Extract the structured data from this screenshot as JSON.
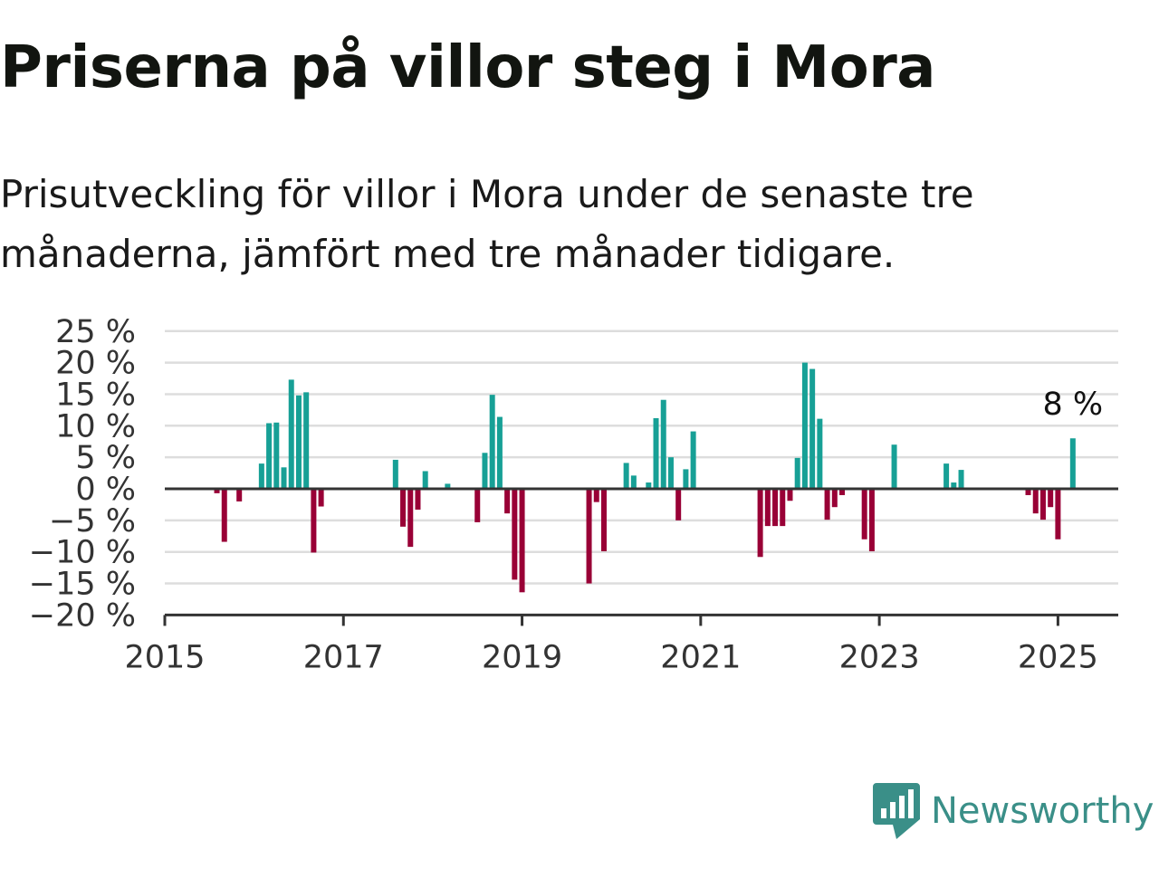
{
  "title": "Priserna på villor steg i Mora",
  "subtitle": "Prisutveckling för villor i Mora under de senaste tre månaderna, jämfört med tre månader tidigare.",
  "brand": {
    "name": "Newsworthy"
  },
  "colors": {
    "positive": "#17a096",
    "negative": "#990036",
    "grid": "#dddddd",
    "zero_line": "#333333",
    "brand": "#3a8f88"
  },
  "chart_data": {
    "type": "bar",
    "title": "Priserna på villor steg i Mora",
    "subtitle": "Prisutveckling för villor i Mora under de senaste tre månaderna, jämfört med tre månader tidigare.",
    "xlabel": "",
    "ylabel": "",
    "x_ticks": [
      "2015",
      "2017",
      "2019",
      "2021",
      "2023",
      "2025"
    ],
    "y_ticks": [
      "25 %",
      "20 %",
      "15 %",
      "10 %",
      "5 %",
      "0 %",
      "−5 %",
      "−10 %",
      "−15 %",
      "−20 %"
    ],
    "ylim": [
      -20,
      25
    ],
    "xlim": [
      "2015-01",
      "2025-08"
    ],
    "grid": true,
    "bar_colors": {
      "positive": "#17a096",
      "negative": "#990036"
    },
    "annotation": {
      "date": "2025-03",
      "text": "8 %"
    },
    "series": [
      {
        "points": [
          {
            "date": "2015-08",
            "value": -0.7
          },
          {
            "date": "2015-09",
            "value": -8.4
          },
          {
            "date": "2015-11",
            "value": -2.0
          },
          {
            "date": "2016-02",
            "value": 4.0
          },
          {
            "date": "2016-03",
            "value": 10.4
          },
          {
            "date": "2016-04",
            "value": 10.5
          },
          {
            "date": "2016-05",
            "value": 3.4
          },
          {
            "date": "2016-06",
            "value": 17.3
          },
          {
            "date": "2016-07",
            "value": 14.8
          },
          {
            "date": "2016-08",
            "value": 15.3
          },
          {
            "date": "2016-09",
            "value": -10.1
          },
          {
            "date": "2016-10",
            "value": -2.8
          },
          {
            "date": "2017-08",
            "value": 4.6
          },
          {
            "date": "2017-09",
            "value": -6.0
          },
          {
            "date": "2017-10",
            "value": -9.2
          },
          {
            "date": "2017-11",
            "value": -3.3
          },
          {
            "date": "2017-12",
            "value": 2.8
          },
          {
            "date": "2018-03",
            "value": 0.8
          },
          {
            "date": "2018-07",
            "value": -5.3
          },
          {
            "date": "2018-08",
            "value": 5.7
          },
          {
            "date": "2018-09",
            "value": 14.9
          },
          {
            "date": "2018-10",
            "value": 11.4
          },
          {
            "date": "2018-11",
            "value": -3.9
          },
          {
            "date": "2018-12",
            "value": -14.4
          },
          {
            "date": "2019-01",
            "value": -16.4
          },
          {
            "date": "2019-10",
            "value": -15.0
          },
          {
            "date": "2019-11",
            "value": -2.1
          },
          {
            "date": "2019-12",
            "value": -9.9
          },
          {
            "date": "2020-03",
            "value": 4.1
          },
          {
            "date": "2020-04",
            "value": 2.1
          },
          {
            "date": "2020-06",
            "value": 1.0
          },
          {
            "date": "2020-07",
            "value": 11.2
          },
          {
            "date": "2020-08",
            "value": 14.1
          },
          {
            "date": "2020-09",
            "value": 5.0
          },
          {
            "date": "2020-10",
            "value": -5.0
          },
          {
            "date": "2020-11",
            "value": 3.1
          },
          {
            "date": "2020-12",
            "value": 9.1
          },
          {
            "date": "2021-09",
            "value": -10.8
          },
          {
            "date": "2021-10",
            "value": -5.9
          },
          {
            "date": "2021-11",
            "value": -5.9
          },
          {
            "date": "2021-12",
            "value": -5.9
          },
          {
            "date": "2022-01",
            "value": -1.9
          },
          {
            "date": "2022-02",
            "value": 4.9
          },
          {
            "date": "2022-03",
            "value": 20.0
          },
          {
            "date": "2022-04",
            "value": 19.0
          },
          {
            "date": "2022-05",
            "value": 11.1
          },
          {
            "date": "2022-06",
            "value": -4.9
          },
          {
            "date": "2022-07",
            "value": -2.9
          },
          {
            "date": "2022-08",
            "value": -1.0
          },
          {
            "date": "2022-11",
            "value": -8.0
          },
          {
            "date": "2022-12",
            "value": -9.9
          },
          {
            "date": "2023-03",
            "value": 7.0
          },
          {
            "date": "2023-10",
            "value": 4.0
          },
          {
            "date": "2023-11",
            "value": 1.0
          },
          {
            "date": "2023-12",
            "value": 3.0
          },
          {
            "date": "2024-09",
            "value": -1.0
          },
          {
            "date": "2024-10",
            "value": -3.9
          },
          {
            "date": "2024-11",
            "value": -4.9
          },
          {
            "date": "2024-12",
            "value": -2.9
          },
          {
            "date": "2025-01",
            "value": -8.0
          },
          {
            "date": "2025-03",
            "value": 8.0
          }
        ]
      }
    ]
  }
}
